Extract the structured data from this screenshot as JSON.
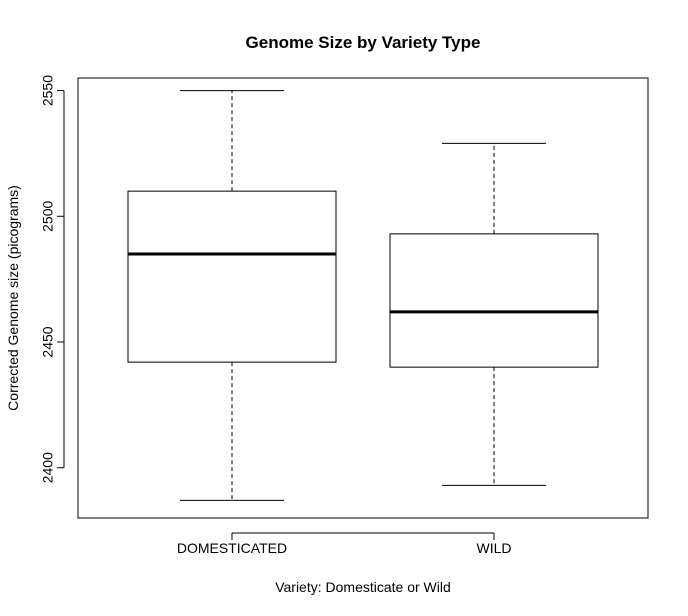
{
  "chart_data": {
    "type": "box",
    "title": "Genome Size by Variety Type",
    "xlabel": "Variety: Domesticate or Wild",
    "ylabel": "Corrected Genome size (picograms)",
    "ylim": [
      2380,
      2555
    ],
    "yticks": [
      2400,
      2450,
      2500,
      2550
    ],
    "categories": [
      "DOMESTICATED",
      "WILD"
    ],
    "boxes": [
      {
        "category": "DOMESTICATED",
        "min": 2387,
        "q1": 2442,
        "median": 2485,
        "q3": 2510,
        "max": 2550
      },
      {
        "category": "WILD",
        "min": 2393,
        "q1": 2440,
        "median": 2462,
        "q3": 2493,
        "max": 2529
      }
    ]
  }
}
